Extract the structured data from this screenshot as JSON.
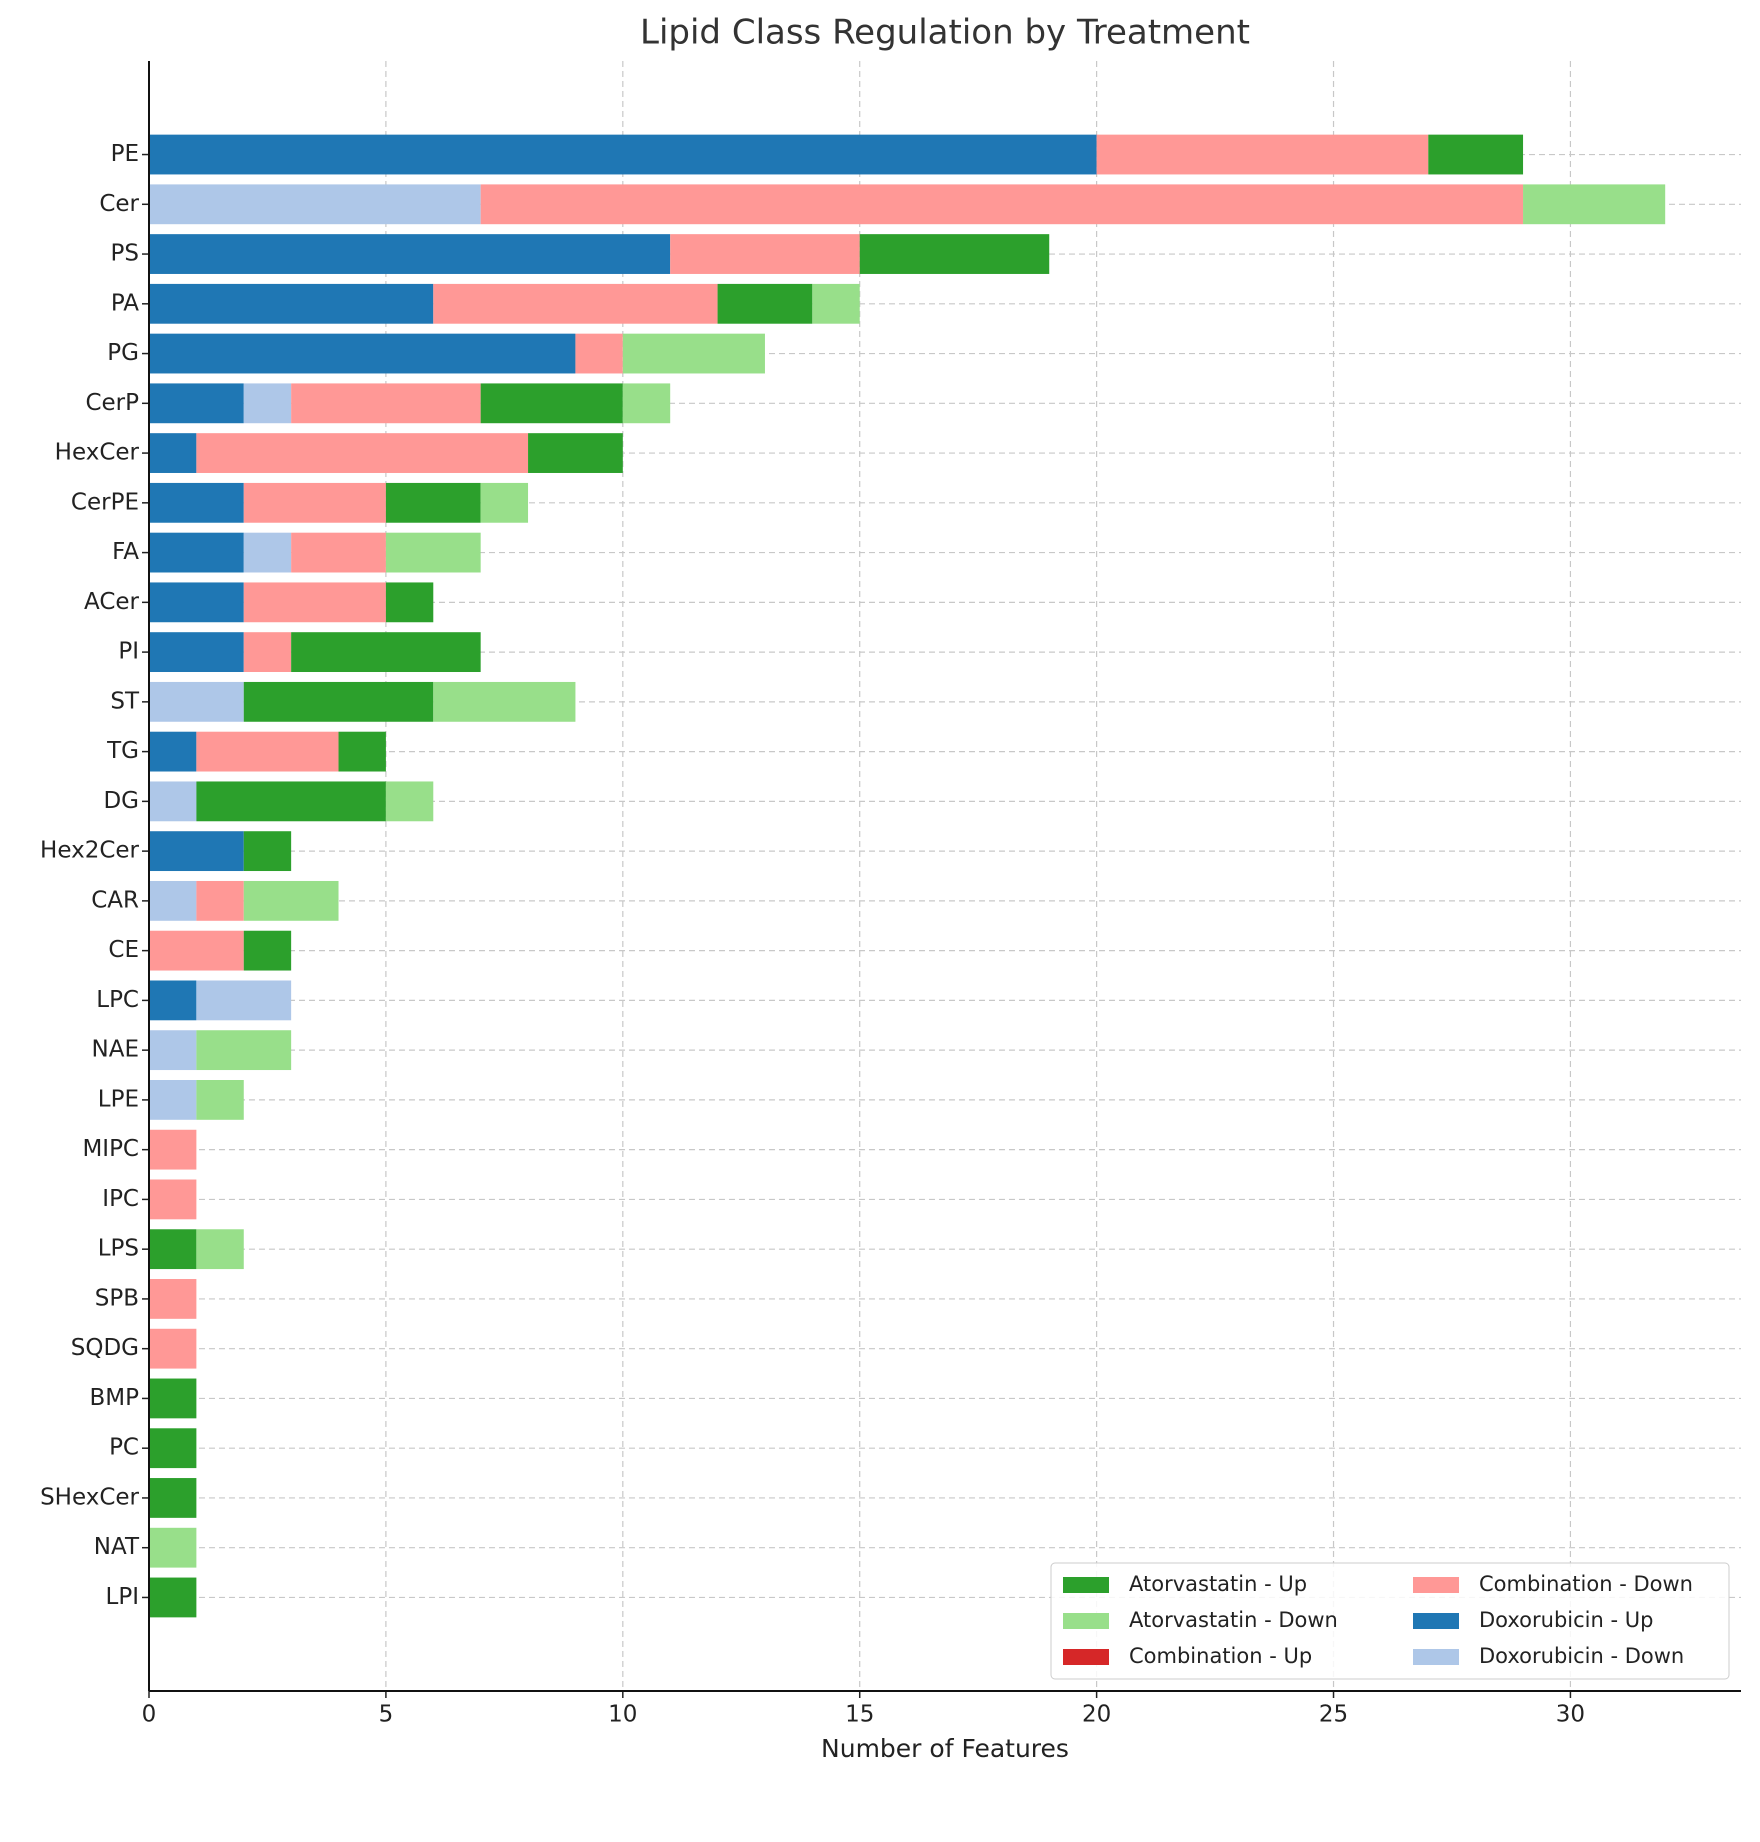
{
  "chart_data": {
    "type": "stacked_barh",
    "title": "Lipid Class Regulation by Treatment",
    "x_label": "Number of Features",
    "categories": [
      "PE",
      "Cer",
      "PS",
      "PA",
      "PG",
      "CerP",
      "HexCer",
      "CerPE",
      "FA",
      "ACer",
      "PI",
      "ST",
      "TG",
      "DG",
      "Hex2Cer",
      "CAR",
      "CE",
      "LPC",
      "NAE",
      "LPE",
      "MIPC",
      "IPC",
      "LPS",
      "SPB",
      "SQDG",
      "BMP",
      "PC",
      "SHexCer",
      "NAT",
      "LPI"
    ],
    "series": [
      {
        "name": "Atorvastatin - Up",
        "color": "#2ca02c",
        "values": [
          2,
          0,
          4,
          2,
          0,
          3,
          2,
          2,
          0,
          1,
          4,
          4,
          1,
          4,
          1,
          0,
          1,
          0,
          0,
          0,
          0,
          0,
          1,
          0,
          0,
          1,
          1,
          1,
          0,
          1
        ]
      },
      {
        "name": "Atorvastatin - Down",
        "color": "#98df8a",
        "values": [
          0,
          3,
          0,
          1,
          3,
          1,
          0,
          1,
          2,
          0,
          0,
          3,
          0,
          1,
          0,
          2,
          0,
          0,
          2,
          1,
          0,
          0,
          1,
          0,
          0,
          0,
          0,
          0,
          1,
          0
        ]
      },
      {
        "name": "Combination - Up",
        "color": "#d62728",
        "values": [
          0,
          0,
          0,
          0,
          0,
          0,
          0,
          0,
          0,
          0,
          0,
          0,
          0,
          0,
          0,
          0,
          0,
          0,
          0,
          0,
          0,
          0,
          0,
          0,
          0,
          0,
          0,
          0,
          0,
          0
        ]
      },
      {
        "name": "Combination - Down",
        "color": "#ff9896",
        "values": [
          7,
          22,
          4,
          6,
          1,
          4,
          7,
          3,
          2,
          3,
          1,
          0,
          3,
          0,
          0,
          1,
          2,
          0,
          0,
          0,
          1,
          1,
          0,
          1,
          1,
          0,
          0,
          0,
          0,
          0
        ]
      },
      {
        "name": "Doxorubicin - Up",
        "color": "#1f77b4",
        "values": [
          20,
          0,
          11,
          6,
          9,
          2,
          1,
          2,
          2,
          2,
          2,
          0,
          1,
          0,
          2,
          0,
          0,
          1,
          0,
          0,
          0,
          0,
          0,
          0,
          0,
          0,
          0,
          0,
          0,
          0
        ]
      },
      {
        "name": "Doxorubicin - Down",
        "color": "#aec7e8",
        "values": [
          0,
          7,
          0,
          0,
          0,
          1,
          0,
          0,
          1,
          0,
          0,
          2,
          0,
          1,
          0,
          1,
          0,
          2,
          1,
          1,
          0,
          0,
          0,
          0,
          0,
          0,
          0,
          0,
          0,
          0
        ]
      }
    ],
    "xlim": [
      0,
      33.6
    ],
    "xticks": [
      0,
      5,
      10,
      15,
      20,
      25,
      30
    ],
    "grid": true,
    "legend": "lower right"
  }
}
